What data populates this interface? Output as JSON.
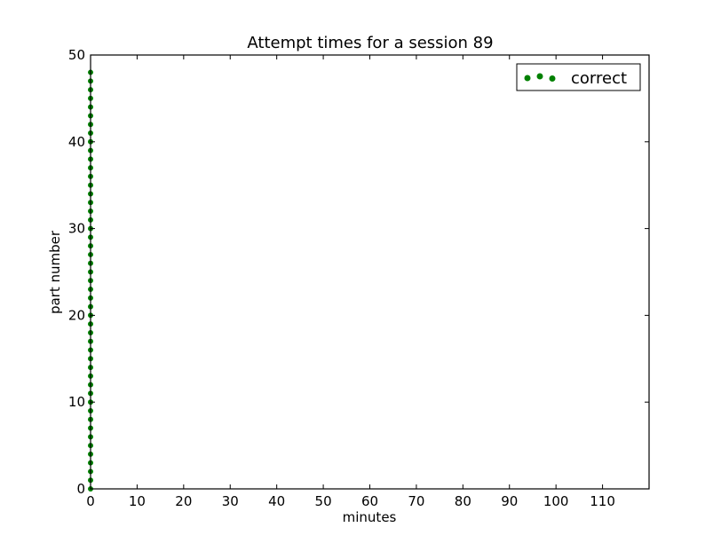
{
  "chart_data": {
    "type": "scatter",
    "title": "Attempt times for a session 89",
    "xlabel": "minutes",
    "ylabel": "part number",
    "xlim": [
      0,
      120
    ],
    "ylim": [
      0,
      50
    ],
    "xticks": [
      0,
      10,
      20,
      30,
      40,
      50,
      60,
      70,
      80,
      90,
      100,
      110
    ],
    "yticks": [
      0,
      10,
      20,
      30,
      40,
      50
    ],
    "grid": false,
    "legend_position": "top-right",
    "series": [
      {
        "name": "correct",
        "color": "#008000",
        "x": [
          0,
          0,
          0,
          0,
          0,
          0,
          0,
          0,
          0,
          0,
          0,
          0,
          0,
          0,
          0,
          0,
          0,
          0,
          0,
          0,
          0,
          0,
          0,
          0,
          0,
          0,
          0,
          0,
          0,
          0,
          0,
          0,
          0,
          0,
          0,
          0,
          0,
          0,
          0,
          0,
          0,
          0,
          0,
          0,
          0,
          0,
          0,
          0,
          0
        ],
        "y": [
          0,
          1,
          2,
          3,
          4,
          5,
          6,
          7,
          8,
          9,
          10,
          11,
          12,
          13,
          14,
          15,
          16,
          17,
          18,
          19,
          20,
          21,
          22,
          23,
          24,
          25,
          26,
          27,
          28,
          29,
          30,
          31,
          32,
          33,
          34,
          35,
          36,
          37,
          38,
          39,
          40,
          41,
          42,
          43,
          44,
          45,
          46,
          47,
          48
        ]
      }
    ]
  }
}
